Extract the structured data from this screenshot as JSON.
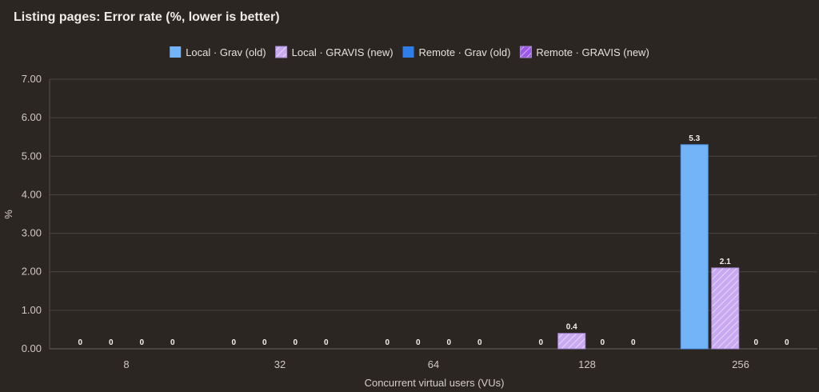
{
  "chart_data": {
    "type": "bar",
    "title": "Listing pages: Error rate (%, lower is better)",
    "xlabel": "Concurrent virtual users (VUs)",
    "ylabel": "%",
    "ylim": [
      0,
      7
    ],
    "yticks": [
      "0.00",
      "1.00",
      "2.00",
      "3.00",
      "4.00",
      "5.00",
      "6.00",
      "7.00"
    ],
    "grid": true,
    "legend_position": "top-center",
    "categories": [
      "8",
      "32",
      "64",
      "128",
      "256"
    ],
    "series": [
      {
        "name": "Local · Grav (old)",
        "color": "#73b3f7",
        "hatched": false,
        "values": [
          0,
          0,
          0,
          0,
          5.3
        ],
        "labels": [
          "0",
          "0",
          "0",
          "0",
          "5.3"
        ]
      },
      {
        "name": "Local · GRAVIS (new)",
        "color": "#c9a9f2",
        "hatched": true,
        "values": [
          0,
          0,
          0,
          0.4,
          2.1
        ],
        "labels": [
          "0",
          "0",
          "0",
          "0.4",
          "2.1"
        ]
      },
      {
        "name": "Remote · Grav (old)",
        "color": "#2f7de8",
        "hatched": false,
        "values": [
          0,
          0,
          0,
          0,
          0
        ],
        "labels": [
          "0",
          "0",
          "0",
          "0",
          "0"
        ]
      },
      {
        "name": "Remote · GRAVIS (new)",
        "color": "#9b59e8",
        "hatched": true,
        "values": [
          0,
          0,
          0,
          0,
          0
        ],
        "labels": [
          "0",
          "0",
          "0",
          "0",
          "0"
        ]
      }
    ]
  }
}
